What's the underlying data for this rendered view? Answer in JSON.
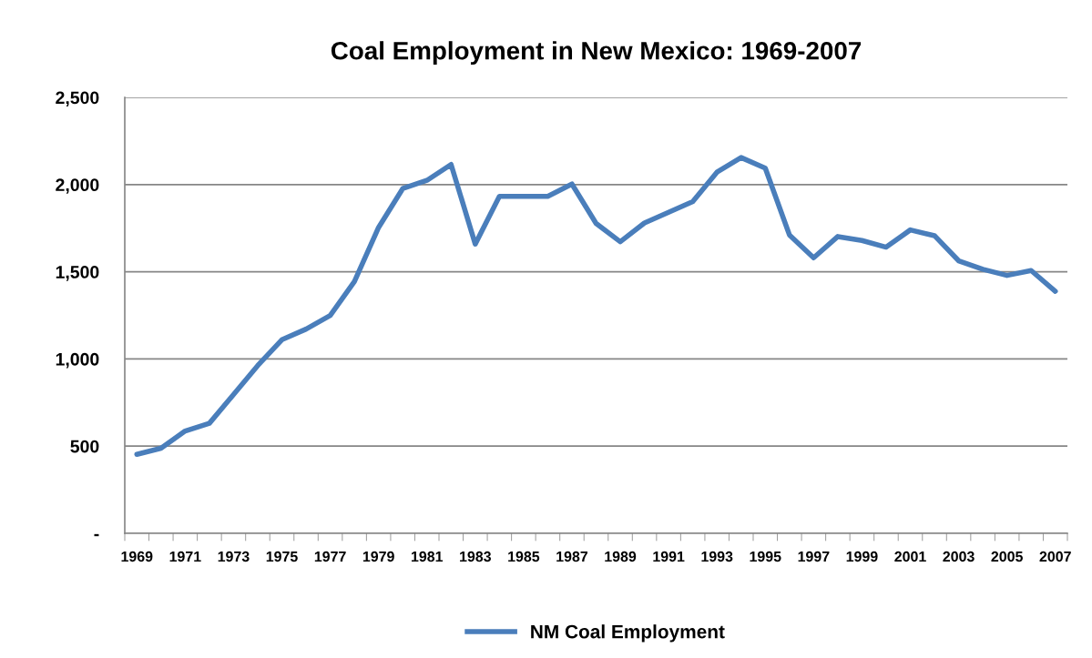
{
  "chart_data": {
    "type": "line",
    "title": "Coal Employment in New Mexico: 1969-2007",
    "categories": [
      "1969",
      null,
      "1971",
      null,
      "1973",
      null,
      "1975",
      null,
      "1977",
      null,
      "1979",
      null,
      "1981",
      null,
      "1983",
      null,
      "1985",
      null,
      "1987",
      null,
      "1989",
      null,
      "1991",
      null,
      "1993",
      null,
      "1995",
      null,
      "1997",
      null,
      "1999",
      null,
      "2001",
      null,
      "2003",
      null,
      "2005",
      null,
      "2007"
    ],
    "series": [
      {
        "name": "NM Coal Employment",
        "color": "#4a7ebb",
        "values": [
          453,
          488,
          587,
          631,
          796,
          962,
          1110,
          1171,
          1249,
          1444,
          1754,
          1977,
          2024,
          2115,
          1659,
          1932,
          1932,
          1932,
          2003,
          1777,
          1672,
          1780,
          1841,
          1902,
          2071,
          2155,
          2094,
          1711,
          1580,
          1702,
          1679,
          1641,
          1740,
          1707,
          1563,
          1514,
          1479,
          1507,
          1388
        ]
      }
    ],
    "ylim": [
      0,
      2500
    ],
    "yticks": [
      {
        "value": 0,
        "label": "-"
      },
      {
        "value": 500,
        "label": "500"
      },
      {
        "value": 1000,
        "label": "1,000"
      },
      {
        "value": 1500,
        "label": "1,500"
      },
      {
        "value": 2000,
        "label": "2,000"
      },
      {
        "value": 2500,
        "label": "2,500"
      }
    ],
    "grid": "y",
    "legend": "bottom",
    "marker": "none",
    "line_style": "solid"
  }
}
